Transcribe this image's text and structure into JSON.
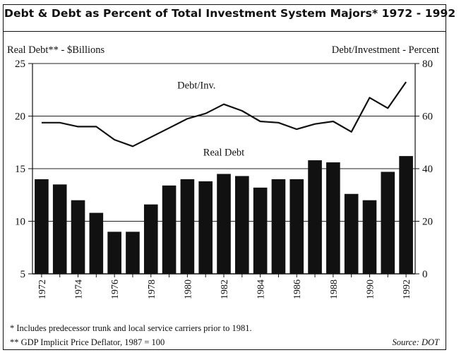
{
  "chart_data": {
    "type": "bar",
    "title": "Debt & Debt as Percent of Total Investment System Majors* 1972 - 1992",
    "left_axis_label": "Real Debt** - $Billions",
    "right_axis_label": "Debt/Investment - Percent",
    "x": [
      1972,
      1973,
      1974,
      1975,
      1976,
      1977,
      1978,
      1979,
      1980,
      1981,
      1982,
      1983,
      1984,
      1985,
      1986,
      1987,
      1988,
      1989,
      1990,
      1991,
      1992
    ],
    "x_tick_labels": [
      "1972",
      "1974",
      "1976",
      "1978",
      "1980",
      "1982",
      "1984",
      "1986",
      "1988",
      "1990",
      "1992"
    ],
    "left_ylim": [
      5,
      25
    ],
    "left_ticks": [
      "5",
      "10",
      "15",
      "20",
      "25"
    ],
    "right_ylim": [
      0,
      80
    ],
    "right_ticks": [
      "0",
      "20",
      "40",
      "60",
      "80"
    ],
    "grid": "horizontal",
    "series": [
      {
        "name": "Real Debt",
        "type": "bar",
        "axis": "left",
        "values": [
          14.0,
          13.5,
          12.0,
          10.8,
          9.0,
          9.0,
          11.6,
          13.4,
          14.0,
          13.8,
          14.5,
          14.3,
          13.2,
          14.0,
          14.0,
          15.8,
          15.6,
          12.6,
          12.0,
          14.7,
          16.2
        ]
      },
      {
        "name": "Debt/Inv.",
        "type": "line",
        "axis": "right",
        "values": [
          57.5,
          57.5,
          56,
          56,
          51,
          48.5,
          52,
          55.5,
          59,
          61,
          64.5,
          62,
          58,
          57.5,
          55,
          57,
          58,
          54,
          67,
          63,
          73
        ]
      }
    ],
    "colors": {
      "bar": "#111111",
      "line": "#111111"
    }
  },
  "footnotes": {
    "note1": "* Includes predecessor trunk and local service carriers prior to 1981.",
    "note2": "** GDP Implicit Price Deflator, 1987 = 100",
    "source": "Source: DOT"
  }
}
